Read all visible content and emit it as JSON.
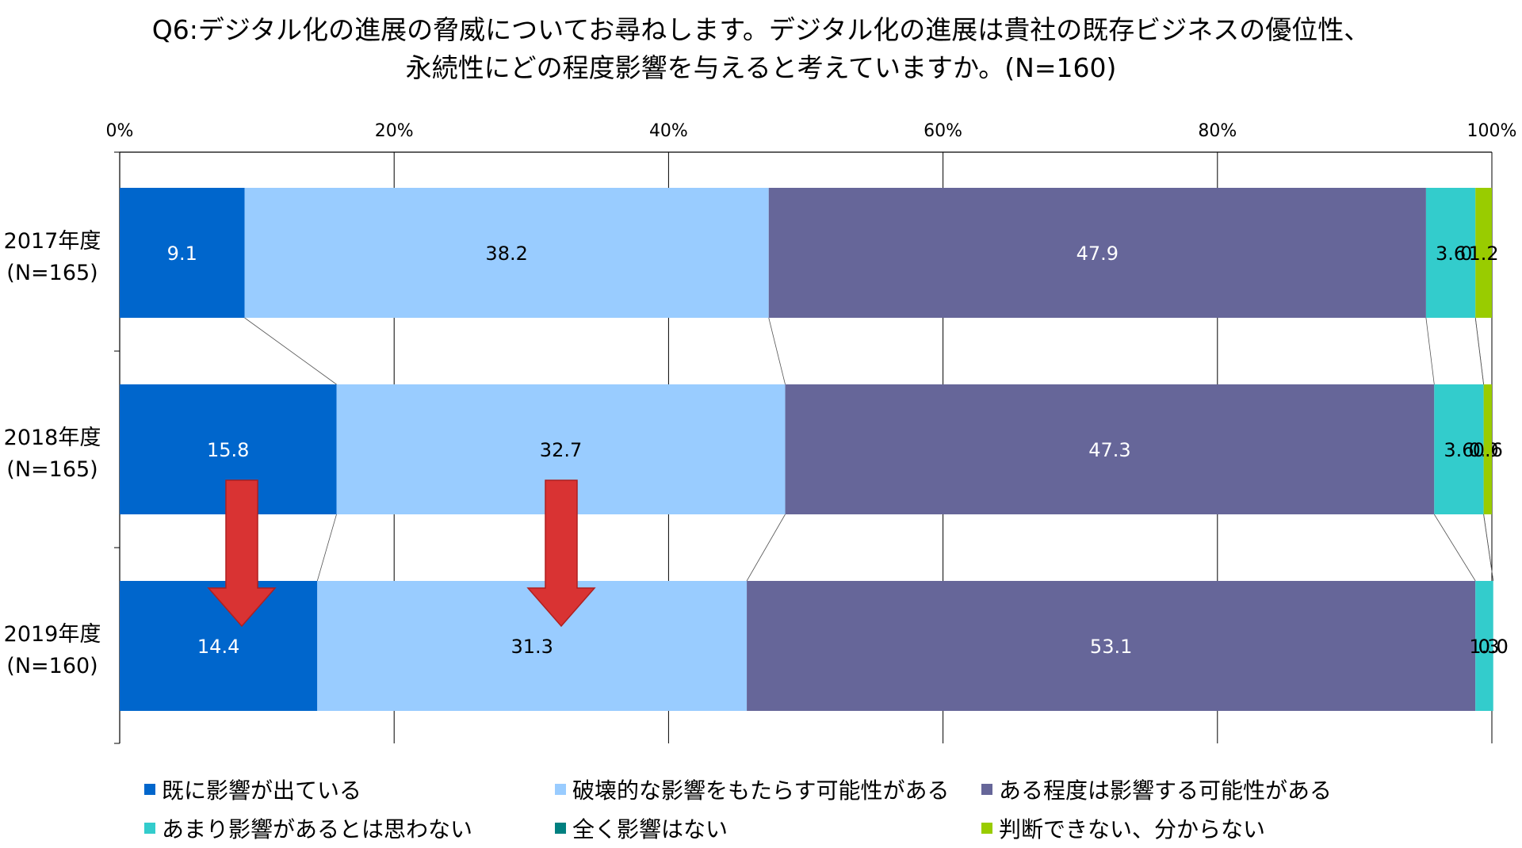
{
  "title_lines": [
    "Q6:デジタル化の進展の脅威についてお尋ねします。デジタル化の進展は貴社の既存ビジネスの優位性、",
    "永続性にどの程度影響を与えると考えていますか。(N=160)"
  ],
  "chart_data": {
    "type": "bar",
    "orientation": "horizontal",
    "stacked": true,
    "percent": true,
    "xlim": [
      0,
      100
    ],
    "x_ticks": [
      "0%",
      "20%",
      "40%",
      "60%",
      "80%",
      "100%"
    ],
    "categories": [
      {
        "year": "2017年度",
        "n": "(N=165)"
      },
      {
        "year": "2018年度",
        "n": "(N=165)"
      },
      {
        "year": "2019年度",
        "n": "(N=160)"
      }
    ],
    "series": [
      {
        "name": "既に影響が出ている",
        "color": "#0066CC",
        "values": [
          9.1,
          15.8,
          14.4
        ],
        "labels": [
          "9.1",
          "15.8",
          "14.4"
        ],
        "label_color": "#ffffff"
      },
      {
        "name": "破壊的な影響をもたらす可能性がある",
        "color": "#99CCFF",
        "values": [
          38.2,
          32.7,
          31.3
        ],
        "labels": [
          "38.2",
          "32.7",
          "31.3"
        ],
        "label_color": "#000000"
      },
      {
        "name": "ある程度は影響する可能性がある",
        "color": "#666699",
        "values": [
          47.9,
          47.3,
          53.1
        ],
        "labels": [
          "47.9",
          "47.3",
          "53.1"
        ],
        "label_color": "#ffffff"
      },
      {
        "name": "あまり影響があるとは思わない",
        "color": "#33CCCC",
        "values": [
          3.6,
          3.6,
          1.3
        ],
        "labels": [
          "3.6",
          "3.6",
          "1.3"
        ],
        "label_color": "#000000"
      },
      {
        "name": "全く影響はない",
        "color": "#008080",
        "values": [
          0.0,
          0.0,
          0.0
        ],
        "labels": [
          "0.0",
          "0.0",
          "0.0"
        ],
        "label_color": "#000000"
      },
      {
        "name": "判断できない、分からない",
        "color": "#99CC00",
        "values": [
          1.2,
          0.6,
          0.0
        ],
        "labels": [
          "1.2",
          "0.6",
          "0.0"
        ],
        "label_color": "#000000"
      }
    ],
    "annotations": [
      "down-arrow on 既に影響が出ている (2018→2019)",
      "down-arrow on 破壊的な影響をもたらす可能性がある (2018→2019)"
    ],
    "arrow_color": "#D93333",
    "legend_position": "bottom",
    "grid": true
  }
}
